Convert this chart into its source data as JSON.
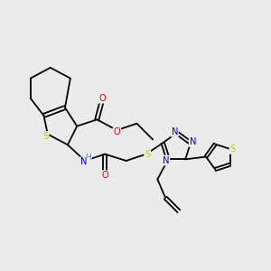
{
  "background_color": "#ebebeb",
  "atom_colors": {
    "C": "#1a1a1a",
    "N": "#0000e0",
    "O": "#e00000",
    "S": "#c8c800",
    "H": "#4a8fa8"
  },
  "figsize": [
    3.0,
    3.0
  ],
  "dpi": 100,
  "lw": 1.3,
  "fs": 7.2,
  "fs_small": 6.0
}
